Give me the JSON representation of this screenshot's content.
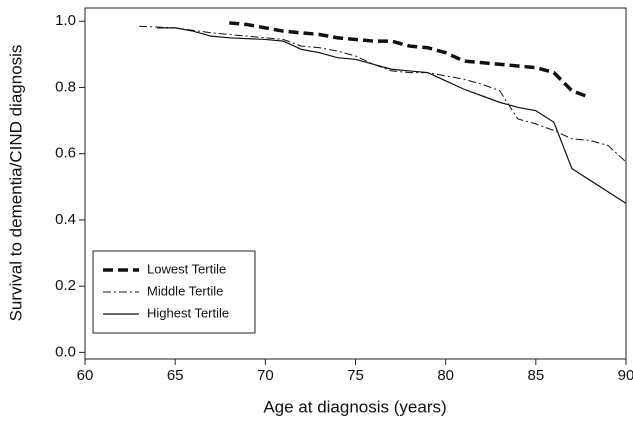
{
  "chart_data": {
    "type": "line",
    "xlabel": "Age at diagnosis (years)",
    "ylabel": "Survival to dementia/CIND diagnosis",
    "xlim": [
      60,
      90
    ],
    "ylim": [
      -0.02,
      1.04
    ],
    "xticks": [
      60,
      65,
      70,
      75,
      80,
      85,
      90
    ],
    "yticks": [
      {
        "value": 0,
        "label": "0.0"
      },
      {
        "value": 0.2,
        "label": "0.2"
      },
      {
        "value": 0.4,
        "label": "0.4"
      },
      {
        "value": 0.6,
        "label": "0.6"
      },
      {
        "value": 0.8,
        "label": "0.8"
      },
      {
        "value": 1,
        "label": "1.0"
      }
    ],
    "legend": "lower left",
    "series": [
      {
        "name": "Lowest Tertile",
        "color": "#111111",
        "dash": "dashed",
        "width": 3.5,
        "x": [
          68,
          69,
          70,
          71,
          72,
          73,
          74,
          75,
          76,
          77,
          78,
          79,
          80,
          81,
          82,
          83,
          84,
          85,
          86,
          87,
          88
        ],
        "values": [
          0.995,
          0.99,
          0.98,
          0.97,
          0.965,
          0.96,
          0.95,
          0.945,
          0.94,
          0.94,
          0.925,
          0.92,
          0.905,
          0.88,
          0.875,
          0.87,
          0.865,
          0.86,
          0.845,
          0.79,
          0.77
        ]
      },
      {
        "name": "Middle Tertile",
        "color": "#111111",
        "dash": "dashdot",
        "width": 1,
        "x": [
          63,
          65,
          67,
          68,
          70,
          71,
          72,
          73,
          74,
          75,
          76,
          77,
          78,
          79,
          80,
          81,
          82,
          83,
          84,
          85,
          86,
          87,
          88,
          89,
          90
        ],
        "values": [
          0.985,
          0.98,
          0.965,
          0.96,
          0.95,
          0.945,
          0.925,
          0.92,
          0.91,
          0.895,
          0.87,
          0.85,
          0.845,
          0.845,
          0.835,
          0.825,
          0.81,
          0.79,
          0.705,
          0.69,
          0.67,
          0.645,
          0.64,
          0.625,
          0.575
        ]
      },
      {
        "name": "Highest Tertile",
        "color": "#111111",
        "dash": "solid",
        "width": 1.2,
        "x": [
          64,
          65,
          66,
          67,
          68,
          70,
          71,
          72,
          73,
          74,
          75,
          76,
          77,
          78,
          79,
          80,
          81,
          82,
          83,
          84,
          85,
          86,
          87,
          88,
          89,
          90
        ],
        "values": [
          0.98,
          0.98,
          0.97,
          0.955,
          0.95,
          0.945,
          0.94,
          0.915,
          0.905,
          0.89,
          0.885,
          0.87,
          0.855,
          0.85,
          0.845,
          0.82,
          0.795,
          0.775,
          0.755,
          0.74,
          0.73,
          0.695,
          0.555,
          0.52,
          0.485,
          0.45
        ]
      }
    ]
  }
}
